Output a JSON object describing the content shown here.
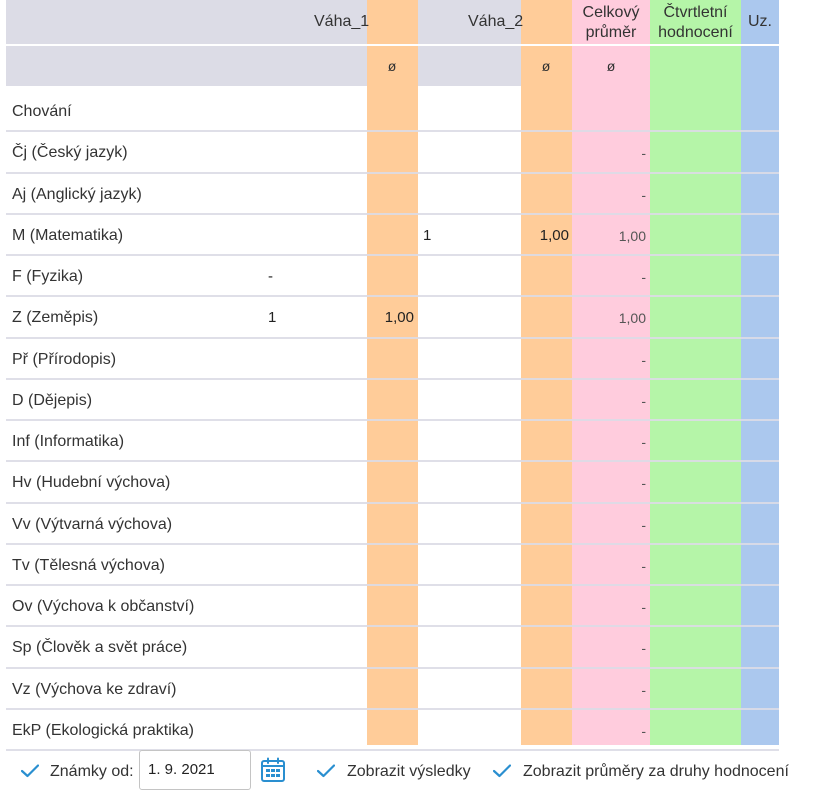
{
  "header": {
    "vaha1": "Váha_1",
    "vaha2": "Váha_2",
    "celkovy_line1": "Celkový",
    "celkovy_line2": "průměr",
    "ctvrtletni_line1": "Čtvrtletní",
    "ctvrtletni_line2": "hodnocení",
    "uz": "Uz.",
    "avg_symbol": "ø"
  },
  "subjects": [
    {
      "name": "Chování",
      "v1_grade": "",
      "v1_avg": "",
      "v2_grade": "",
      "v2_avg": "",
      "total": ""
    },
    {
      "name": "Čj (Český jazyk)",
      "v1_grade": "",
      "v1_avg": "",
      "v2_grade": "",
      "v2_avg": "",
      "total": "-"
    },
    {
      "name": "Aj (Anglický jazyk)",
      "v1_grade": "",
      "v1_avg": "",
      "v2_grade": "",
      "v2_avg": "",
      "total": "-"
    },
    {
      "name": "M (Matematika)",
      "v1_grade": "",
      "v1_avg": "",
      "v2_grade": "1",
      "v2_avg": "1,00",
      "total": "1,00"
    },
    {
      "name": "F (Fyzika)",
      "v1_grade": "-",
      "v1_avg": "",
      "v2_grade": "",
      "v2_avg": "",
      "total": "-"
    },
    {
      "name": "Z (Zeměpis)",
      "v1_grade": "1",
      "v1_avg": "1,00",
      "v2_grade": "",
      "v2_avg": "",
      "total": "1,00"
    },
    {
      "name": "Př (Přírodopis)",
      "v1_grade": "",
      "v1_avg": "",
      "v2_grade": "",
      "v2_avg": "",
      "total": "-"
    },
    {
      "name": "D (Dějepis)",
      "v1_grade": "",
      "v1_avg": "",
      "v2_grade": "",
      "v2_avg": "",
      "total": "-"
    },
    {
      "name": "Inf (Informatika)",
      "v1_grade": "",
      "v1_avg": "",
      "v2_grade": "",
      "v2_avg": "",
      "total": "-"
    },
    {
      "name": "Hv (Hudební výchova)",
      "v1_grade": "",
      "v1_avg": "",
      "v2_grade": "",
      "v2_avg": "",
      "total": "-"
    },
    {
      "name": "Vv (Výtvarná výchova)",
      "v1_grade": "",
      "v1_avg": "",
      "v2_grade": "",
      "v2_avg": "",
      "total": "-"
    },
    {
      "name": "Tv (Tělesná výchova)",
      "v1_grade": "",
      "v1_avg": "",
      "v2_grade": "",
      "v2_avg": "",
      "total": "-"
    },
    {
      "name": "Ov (Výchova k občanství)",
      "v1_grade": "",
      "v1_avg": "",
      "v2_grade": "",
      "v2_avg": "",
      "total": "-"
    },
    {
      "name": "Sp (Člověk a svět práce)",
      "v1_grade": "",
      "v1_avg": "",
      "v2_grade": "",
      "v2_avg": "",
      "total": "-"
    },
    {
      "name": "Vz (Výchova ke zdraví)",
      "v1_grade": "",
      "v1_avg": "",
      "v2_grade": "",
      "v2_avg": "",
      "total": "-"
    },
    {
      "name": "EkP (Ekologická praktika)",
      "v1_grade": "",
      "v1_avg": "",
      "v2_grade": "",
      "v2_avg": "",
      "total": "-"
    }
  ],
  "footer": {
    "marks_from_label": "Známky od:",
    "marks_from_value": "1. 9. 2021",
    "show_results_label": "Zobrazit výsledky",
    "show_averages_label": "Zobrazit průměry za druhy hodnocení"
  },
  "colors": {
    "weight_avg": "#ffcc99",
    "total_avg": "#ffccdd",
    "quarterly": "#b5f5a8",
    "uz": "#abc8ee",
    "check": "#2a8fd0"
  },
  "icons": {
    "check": "check-icon",
    "calendar": "calendar-icon"
  }
}
